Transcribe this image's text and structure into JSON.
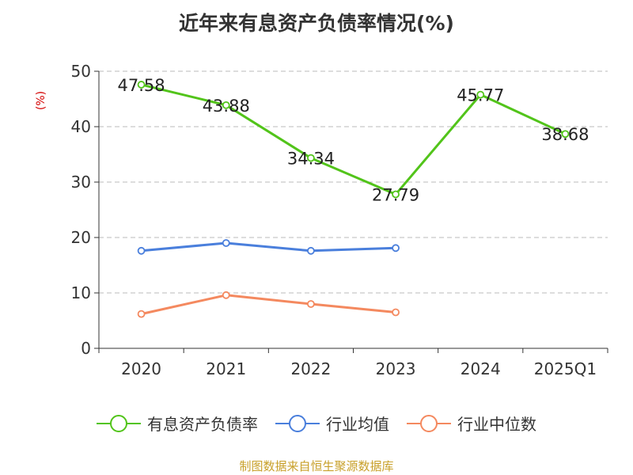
{
  "title": "近年来有息资产负债率情况(%)",
  "y_unit": "(%)",
  "source": "制图数据来自恒生聚源数据库",
  "chart_data": {
    "type": "line",
    "categories": [
      "2020",
      "2021",
      "2022",
      "2023",
      "2024",
      "2025Q1"
    ],
    "ylim": [
      0,
      50
    ],
    "yticks": [
      0,
      10,
      20,
      30,
      40,
      50
    ],
    "grid": true,
    "legend_position": "bottom",
    "series": [
      {
        "name": "有息资产负债率",
        "color": "#52c41a",
        "values": [
          47.58,
          43.88,
          34.34,
          27.79,
          45.77,
          38.68
        ],
        "labels": true
      },
      {
        "name": "行业均值",
        "color": "#4a7fdc",
        "values": [
          17.6,
          19.0,
          17.6,
          18.1,
          null,
          null
        ],
        "labels": false
      },
      {
        "name": "行业中位数",
        "color": "#f4895f",
        "values": [
          6.2,
          9.6,
          8.0,
          6.5,
          null,
          null
        ],
        "labels": false
      }
    ]
  }
}
